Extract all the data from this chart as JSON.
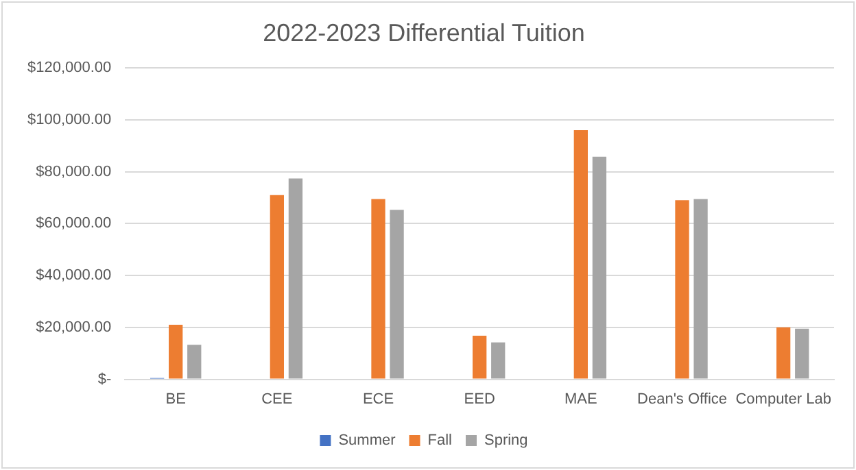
{
  "chart_data": {
    "type": "bar",
    "title": "2022-2023 Differential Tuition",
    "categories": [
      "BE",
      "CEE",
      "ECE",
      "EED",
      "MAE",
      "Dean's Office",
      "Computer Lab"
    ],
    "series": [
      {
        "name": "Summer",
        "color": "#4472c4",
        "values": [
          500,
          null,
          null,
          null,
          null,
          null,
          null
        ]
      },
      {
        "name": "Fall",
        "color": "#ed7d31",
        "values": [
          21000,
          71000,
          69500,
          16800,
          96000,
          69000,
          20000
        ]
      },
      {
        "name": "Spring",
        "color": "#a5a5a5",
        "values": [
          13300,
          77400,
          65300,
          14200,
          85800,
          69500,
          19500
        ]
      }
    ],
    "ylim": [
      0,
      120000
    ],
    "yticks": [
      {
        "value": 0,
        "label": "$-"
      },
      {
        "value": 20000,
        "label": "$20,000.00"
      },
      {
        "value": 40000,
        "label": "$40,000.00"
      },
      {
        "value": 60000,
        "label": "$60,000.00"
      },
      {
        "value": 80000,
        "label": "$80,000.00"
      },
      {
        "value": 100000,
        "label": "$100,000.00"
      },
      {
        "value": 120000,
        "label": "$120,000.00"
      }
    ],
    "grid": "y",
    "legend": "bottom"
  }
}
